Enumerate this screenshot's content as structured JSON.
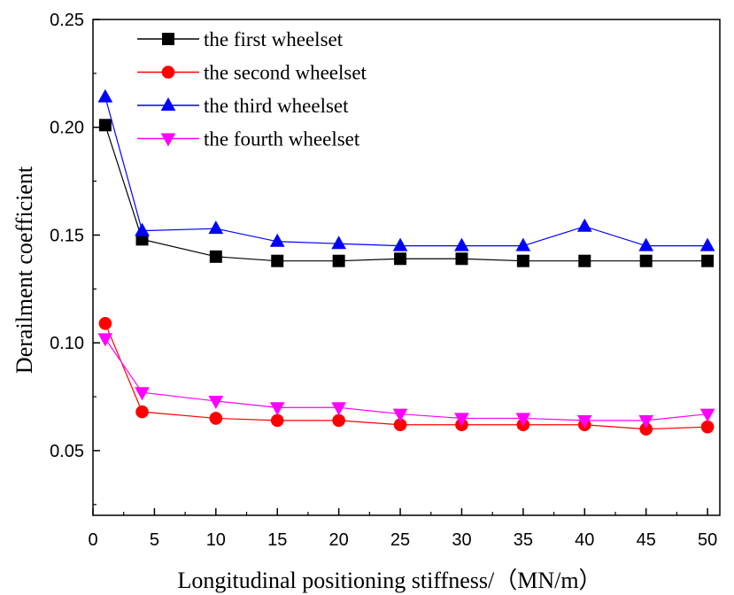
{
  "chart_data": {
    "type": "line",
    "xlabel": "Longitudinal positioning stiffness/（MN/m）",
    "ylabel": "Derailment coefficient",
    "xlim": [
      0,
      51
    ],
    "ylim": [
      0.02,
      0.25
    ],
    "xticks": [
      0,
      5,
      10,
      15,
      20,
      25,
      30,
      35,
      40,
      45,
      50
    ],
    "yticks": [
      0.05,
      0.1,
      0.15,
      0.2,
      0.25
    ],
    "x": [
      1,
      4,
      10,
      15,
      20,
      25,
      30,
      35,
      40,
      45,
      50
    ],
    "legend_position": "top-left",
    "grid": false,
    "series": [
      {
        "name": "the first wheelset",
        "color": "#000000",
        "marker": "square",
        "values": [
          0.201,
          0.148,
          0.14,
          0.138,
          0.138,
          0.139,
          0.139,
          0.138,
          0.138,
          0.138,
          0.138
        ]
      },
      {
        "name": "the second wheelset",
        "color": "#ff0000",
        "marker": "circle",
        "values": [
          0.109,
          0.068,
          0.065,
          0.064,
          0.064,
          0.062,
          0.062,
          0.062,
          0.062,
          0.06,
          0.061
        ]
      },
      {
        "name": "the third wheelset",
        "color": "#0000ff",
        "marker": "triangle-up",
        "values": [
          0.214,
          0.152,
          0.153,
          0.147,
          0.146,
          0.145,
          0.145,
          0.145,
          0.154,
          0.145,
          0.145
        ]
      },
      {
        "name": "the fourth wheelset",
        "color": "#ff00ff",
        "marker": "triangle-down",
        "values": [
          0.102,
          0.077,
          0.073,
          0.07,
          0.07,
          0.067,
          0.065,
          0.065,
          0.064,
          0.064,
          0.067
        ]
      }
    ]
  }
}
